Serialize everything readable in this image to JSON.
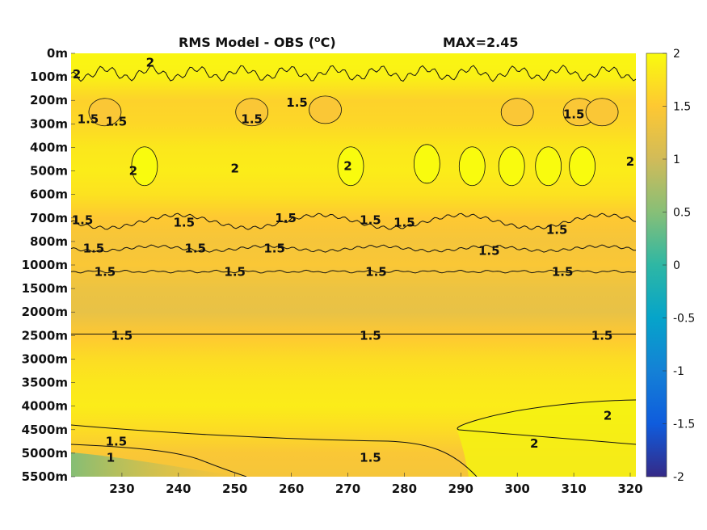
{
  "chart_data": {
    "type": "heatmap",
    "title": "RMS Model - OBS (",
    "title_unit_sup": "o",
    "title_unit": "C)",
    "max_label": "MAX=2.45",
    "xlabel": "",
    "ylabel": "",
    "xlim": [
      221,
      321
    ],
    "x_ticks": [
      230,
      240,
      250,
      260,
      270,
      280,
      290,
      300,
      310,
      320
    ],
    "y_ticks": [
      "0m",
      "100m",
      "200m",
      "300m",
      "400m",
      "500m",
      "600m",
      "700m",
      "800m",
      "1000m",
      "1500m",
      "2000m",
      "2500m",
      "3000m",
      "3500m",
      "4000m",
      "4500m",
      "5000m",
      "5500m"
    ],
    "colorbar": {
      "range": [
        -2,
        2
      ],
      "ticks": [
        "2",
        "1.5",
        "1",
        "0.5",
        "0",
        "-0.5",
        "-1",
        "-1.5",
        "-2"
      ],
      "colors": [
        "#352a87",
        "#0f5cdd",
        "#1481d6",
        "#06a4ca",
        "#2eb7a4",
        "#87bf77",
        "#d1bb59",
        "#fec832",
        "#f9fb0e"
      ]
    },
    "depth_profile": [
      {
        "depth": "0m",
        "value": 1.95
      },
      {
        "depth": "100m",
        "value": 1.9
      },
      {
        "depth": "200m",
        "value": 1.6
      },
      {
        "depth": "300m",
        "value": 1.65
      },
      {
        "depth": "400m",
        "value": 1.8
      },
      {
        "depth": "500m",
        "value": 1.85
      },
      {
        "depth": "600m",
        "value": 1.75
      },
      {
        "depth": "700m",
        "value": 1.5
      },
      {
        "depth": "800m",
        "value": 1.4
      },
      {
        "depth": "1000m",
        "value": 1.45
      },
      {
        "depth": "1500m",
        "value": 1.3
      },
      {
        "depth": "2000m",
        "value": 1.25
      },
      {
        "depth": "2500m",
        "value": 1.5
      },
      {
        "depth": "3000m",
        "value": 1.7
      },
      {
        "depth": "3500m",
        "value": 1.8
      },
      {
        "depth": "4000m",
        "value": 1.85
      },
      {
        "depth": "4500m",
        "value": 1.7
      },
      {
        "depth": "5000m",
        "value": 1.45
      },
      {
        "depth": "5500m",
        "value": 1.4
      }
    ],
    "contour_labels": [
      {
        "text": "1.5",
        "x": 223,
        "depth_index": 7.1
      },
      {
        "text": "1.5",
        "x": 225,
        "depth_index": 8.3
      },
      {
        "text": "1.5",
        "x": 227,
        "depth_index": 9.3
      },
      {
        "text": "1.5",
        "x": 250,
        "depth_index": 9.3
      },
      {
        "text": "1.5",
        "x": 275,
        "depth_index": 9.3
      },
      {
        "text": "1.5",
        "x": 308,
        "depth_index": 9.3
      },
      {
        "text": "1.5",
        "x": 243,
        "depth_index": 8.3
      },
      {
        "text": "1.5",
        "x": 257,
        "depth_index": 8.3
      },
      {
        "text": "1.5",
        "x": 241,
        "depth_index": 7.2
      },
      {
        "text": "1.5",
        "x": 259,
        "depth_index": 7.0
      },
      {
        "text": "1.5",
        "x": 274,
        "depth_index": 7.1
      },
      {
        "text": "1.5",
        "x": 280,
        "depth_index": 7.2
      },
      {
        "text": "1.5",
        "x": 295,
        "depth_index": 8.4
      },
      {
        "text": "1.5",
        "x": 307,
        "depth_index": 7.5
      },
      {
        "text": "1.5",
        "x": 224,
        "depth_index": 2.8
      },
      {
        "text": "1.5",
        "x": 229,
        "depth_index": 2.9
      },
      {
        "text": "1.5",
        "x": 253,
        "depth_index": 2.8
      },
      {
        "text": "1.5",
        "x": 261,
        "depth_index": 2.1
      },
      {
        "text": "1.5",
        "x": 310,
        "depth_index": 2.6
      },
      {
        "text": "1.5",
        "x": 230,
        "depth_index": 12.0
      },
      {
        "text": "1.5",
        "x": 274,
        "depth_index": 12.0
      },
      {
        "text": "1.5",
        "x": 315,
        "depth_index": 12.0
      },
      {
        "text": "1.5",
        "x": 229,
        "depth_index": 16.5
      },
      {
        "text": "1.5",
        "x": 274,
        "depth_index": 17.2
      },
      {
        "text": "1",
        "x": 228,
        "depth_index": 17.2
      },
      {
        "text": "2",
        "x": 303,
        "depth_index": 16.6
      },
      {
        "text": "2",
        "x": 316,
        "depth_index": 15.4
      },
      {
        "text": "2",
        "x": 232,
        "depth_index": 5.0
      },
      {
        "text": "2",
        "x": 270,
        "depth_index": 4.8
      },
      {
        "text": "2",
        "x": 250,
        "depth_index": 4.9
      },
      {
        "text": "2",
        "x": 320,
        "depth_index": 4.6
      },
      {
        "text": "2",
        "x": 235,
        "depth_index": 0.4
      },
      {
        "text": "2",
        "x": 222,
        "depth_index": 0.9
      }
    ]
  }
}
